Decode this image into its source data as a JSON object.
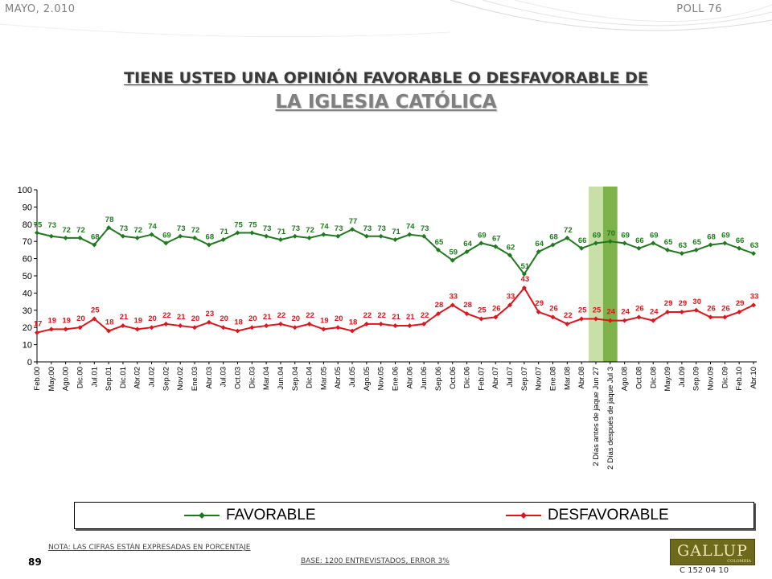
{
  "header": {
    "date": "MAYO, 2.010",
    "poll": "POLL 76"
  },
  "title": {
    "line1": "TIENE USTED UNA OPINIÓN FAVORABLE O DESFAVORABLE DE",
    "line2": "LA IGLESIA CATÓLICA"
  },
  "colors": {
    "favorable": "#1f7a1f",
    "desfavorable": "#e0141a",
    "band_light": "#c9dfa8",
    "band_dark": "#7eb24a",
    "grid": "#c0c0c0"
  },
  "chart_data": {
    "type": "line",
    "ylim": [
      0,
      100
    ],
    "yticks": [
      0,
      10,
      20,
      30,
      40,
      50,
      60,
      70,
      80,
      90,
      100
    ],
    "grid": false,
    "legend_position": "bottom",
    "categories": [
      "Feb.00",
      "May.00",
      "Ago.00",
      "Dic.00",
      "Jul.01",
      "Sep.01",
      "Dic.01",
      "Abr.02",
      "Jul.02",
      "Sep.02",
      "Nov.02",
      "Ene.03",
      "Abr.03",
      "Jul.03",
      "Oct.03",
      "Dic.03",
      "Mar.04",
      "Jun.04",
      "Sep.04",
      "Dic.04",
      "Mar.05",
      "Abr.05",
      "Jul.05",
      "Ago.05",
      "Nov.05",
      "Ene.06",
      "Abr.06",
      "Jun.06",
      "Sep.06",
      "Oct.06",
      "Dic.06",
      "Feb.07",
      "Abr.07",
      "Jul.07",
      "Sep.07",
      "Nov.07",
      "Ene.08",
      "Mar.08",
      "Abr.08",
      "2 Días antes de jaque Jun 27",
      "2 Días después de jaque Jul 3",
      "Ago.08",
      "Oct.08",
      "Dic.08",
      "May.09",
      "Jul.09",
      "Sep.09",
      "Nov.09",
      "Dic.09",
      "Feb.10",
      "Abr.10"
    ],
    "highlight_bands": [
      {
        "category": "2 Días antes de jaque Jun 27",
        "shade": "light"
      },
      {
        "category": "2 Días después de jaque Jul 3",
        "shade": "dark"
      }
    ],
    "series": [
      {
        "name": "FAVORABLE",
        "color": "#1f7a1f",
        "values": [
          75,
          73,
          72,
          72,
          68,
          78,
          73,
          72,
          74,
          69,
          73,
          72,
          68,
          71,
          75,
          75,
          73,
          71,
          73,
          72,
          74,
          73,
          77,
          73,
          73,
          71,
          74,
          73,
          65,
          59,
          64,
          69,
          67,
          62,
          51,
          64,
          68,
          72,
          66,
          69,
          70,
          69,
          66,
          69,
          65,
          63,
          65,
          68,
          69,
          66,
          63
        ]
      },
      {
        "name": "DESFAVORABLE",
        "color": "#e0141a",
        "values": [
          17,
          19,
          19,
          20,
          25,
          18,
          21,
          19,
          20,
          22,
          21,
          20,
          23,
          20,
          18,
          20,
          21,
          22,
          20,
          22,
          19,
          20,
          18,
          22,
          22,
          21,
          21,
          22,
          28,
          33,
          28,
          25,
          26,
          33,
          43,
          29,
          26,
          22,
          25,
          25,
          24,
          24,
          26,
          24,
          29,
          29,
          30,
          26,
          26,
          29,
          33
        ]
      }
    ]
  },
  "legend": {
    "favorable": "FAVORABLE",
    "desfavorable": "DESFAVORABLE"
  },
  "footer": {
    "note": "NOTA: LAS CIFRAS ESTÁN EXPRESADAS EN PORCENTAJE",
    "base": "BASE: 1200 ENTREVISTADOS, ERROR 3%",
    "page": "89",
    "logo": "GALLUP",
    "logo_sub": "COLOMBIA",
    "code": "C 152 04 10"
  }
}
